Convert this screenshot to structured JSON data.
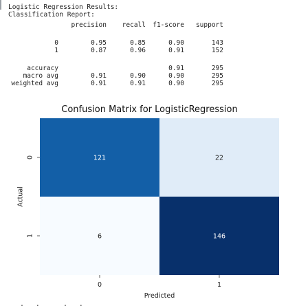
{
  "output": {
    "header1": "Logistic Regression Results:",
    "header2": "Classification Report:",
    "col_headers": [
      "precision",
      "recall",
      "f1-score",
      "support"
    ],
    "rows": [
      {
        "label": "0",
        "precision": "0.95",
        "recall": "0.85",
        "f1": "0.90",
        "support": "143"
      },
      {
        "label": "1",
        "precision": "0.87",
        "recall": "0.96",
        "f1": "0.91",
        "support": "152"
      }
    ],
    "accuracy_row": {
      "label": "accuracy",
      "f1": "0.91",
      "support": "295"
    },
    "avg_rows": [
      {
        "label": "macro avg",
        "precision": "0.91",
        "recall": "0.90",
        "f1": "0.90",
        "support": "295"
      },
      {
        "label": "weighted avg",
        "precision": "0.91",
        "recall": "0.91",
        "f1": "0.90",
        "support": "295"
      }
    ]
  },
  "chart_data": {
    "type": "heatmap",
    "title": "Confusion Matrix for LogisticRegression",
    "xlabel": "Predicted",
    "ylabel": "Actual",
    "x_categories": [
      "0",
      "1"
    ],
    "y_categories": [
      "0",
      "1"
    ],
    "values": [
      [
        121,
        22
      ],
      [
        6,
        146
      ]
    ],
    "colormap": "Blues",
    "colors": {
      "low": "#f7fbff",
      "high": "#08306b",
      "grid_text_dark": "#222222",
      "grid_text_light": "#ffffff"
    }
  },
  "cutoff_text": "   .   .      .   ."
}
